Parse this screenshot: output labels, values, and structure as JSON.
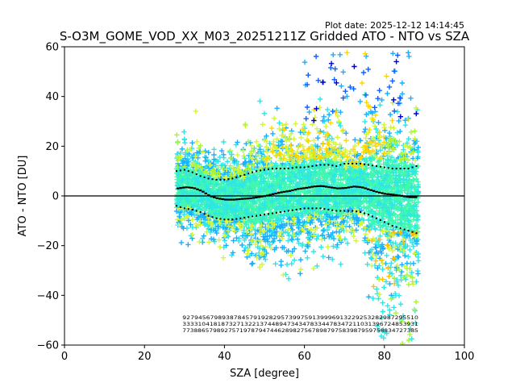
{
  "chart_data": {
    "type": "scatter",
    "title": "S-O3M_GOME_VOD_XX_M03_20251211Z Gridded ATO - NTO vs SZA",
    "subtitle": "Plot date: 2025-12-12 14:14:45",
    "xlabel": "SZA [degree]",
    "ylabel": "ATO - NTO [DU]",
    "xlim": [
      0,
      100
    ],
    "ylim": [
      -60,
      60
    ],
    "xticks": [
      0,
      20,
      40,
      60,
      80,
      100
    ],
    "yticks": [
      -60,
      -40,
      -20,
      0,
      20,
      40,
      60
    ],
    "zero_line": 0,
    "colors": {
      "core": "#40f7b0",
      "cyan": "#2ee6e6",
      "lightblue": "#1ab0ff",
      "blue": "#1060ff",
      "navy": "#0000cc",
      "yellowgreen": "#d4f53a",
      "lime": "#a8f53c",
      "gold": "#ffd700",
      "orange": "#ffc000",
      "median_line": "#000000"
    },
    "median": {
      "x": [
        28,
        30,
        32,
        34,
        36,
        38,
        40,
        42,
        44,
        46,
        48,
        50,
        52,
        54,
        56,
        58,
        60,
        62,
        64,
        66,
        68,
        70,
        72,
        74,
        76,
        78,
        80,
        82,
        84,
        86,
        88
      ],
      "y": [
        3,
        3.5,
        3.2,
        2,
        0,
        -1,
        -1.5,
        -1.5,
        -1.2,
        -1,
        -0.5,
        0,
        0.8,
        1.5,
        2,
        2.8,
        3.2,
        3.8,
        4,
        3.5,
        3,
        3.2,
        3.8,
        3.5,
        2.5,
        1.5,
        0.8,
        0.5,
        0,
        -0.5,
        -0.5
      ]
    },
    "upper_percentile": {
      "x": [
        28,
        30,
        32,
        34,
        36,
        38,
        40,
        42,
        44,
        46,
        48,
        50,
        52,
        54,
        56,
        58,
        60,
        62,
        64,
        66,
        68,
        70,
        72,
        74,
        76,
        78,
        80,
        82,
        84,
        86,
        88
      ],
      "y": [
        10,
        10.5,
        9.5,
        8,
        7,
        6.5,
        6.5,
        7,
        8,
        9,
        10,
        10.5,
        11,
        11,
        11,
        11.5,
        11.5,
        12,
        12.5,
        12.5,
        12,
        13,
        13,
        13,
        12.5,
        12,
        11.5,
        11,
        11,
        11,
        12
      ]
    },
    "lower_percentile": {
      "x": [
        28,
        30,
        32,
        34,
        36,
        38,
        40,
        42,
        44,
        46,
        48,
        50,
        52,
        54,
        56,
        58,
        60,
        62,
        64,
        66,
        68,
        70,
        72,
        74,
        76,
        78,
        80,
        82,
        84,
        86,
        88
      ],
      "y": [
        -4,
        -5,
        -5.5,
        -6.5,
        -8,
        -9,
        -9.5,
        -9.5,
        -9,
        -8.5,
        -8,
        -7.5,
        -7,
        -6.5,
        -6,
        -5.5,
        -5,
        -5,
        -5,
        -5.5,
        -6,
        -6,
        -6,
        -6.5,
        -7.5,
        -9,
        -10.5,
        -12,
        -13,
        -14,
        -15
      ]
    },
    "count_rows": [
      "927945679893878457919282957399759139996913229253282987295510",
      "3333104181873271322137448947343478334478347211031396724853931",
      "77388657989275719787947446289827567898797583987959758834727385"
    ]
  }
}
